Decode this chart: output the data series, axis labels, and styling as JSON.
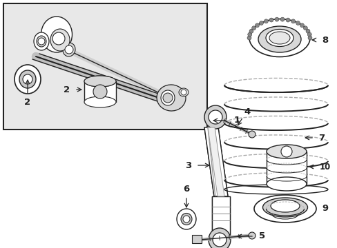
{
  "figsize": [
    4.89,
    3.6
  ],
  "dpi": 100,
  "white": "#ffffff",
  "inset_bg": "#e8e8e8",
  "line_color": "#222222",
  "gray1": "#aaaaaa",
  "gray2": "#cccccc",
  "gray3": "#666666"
}
